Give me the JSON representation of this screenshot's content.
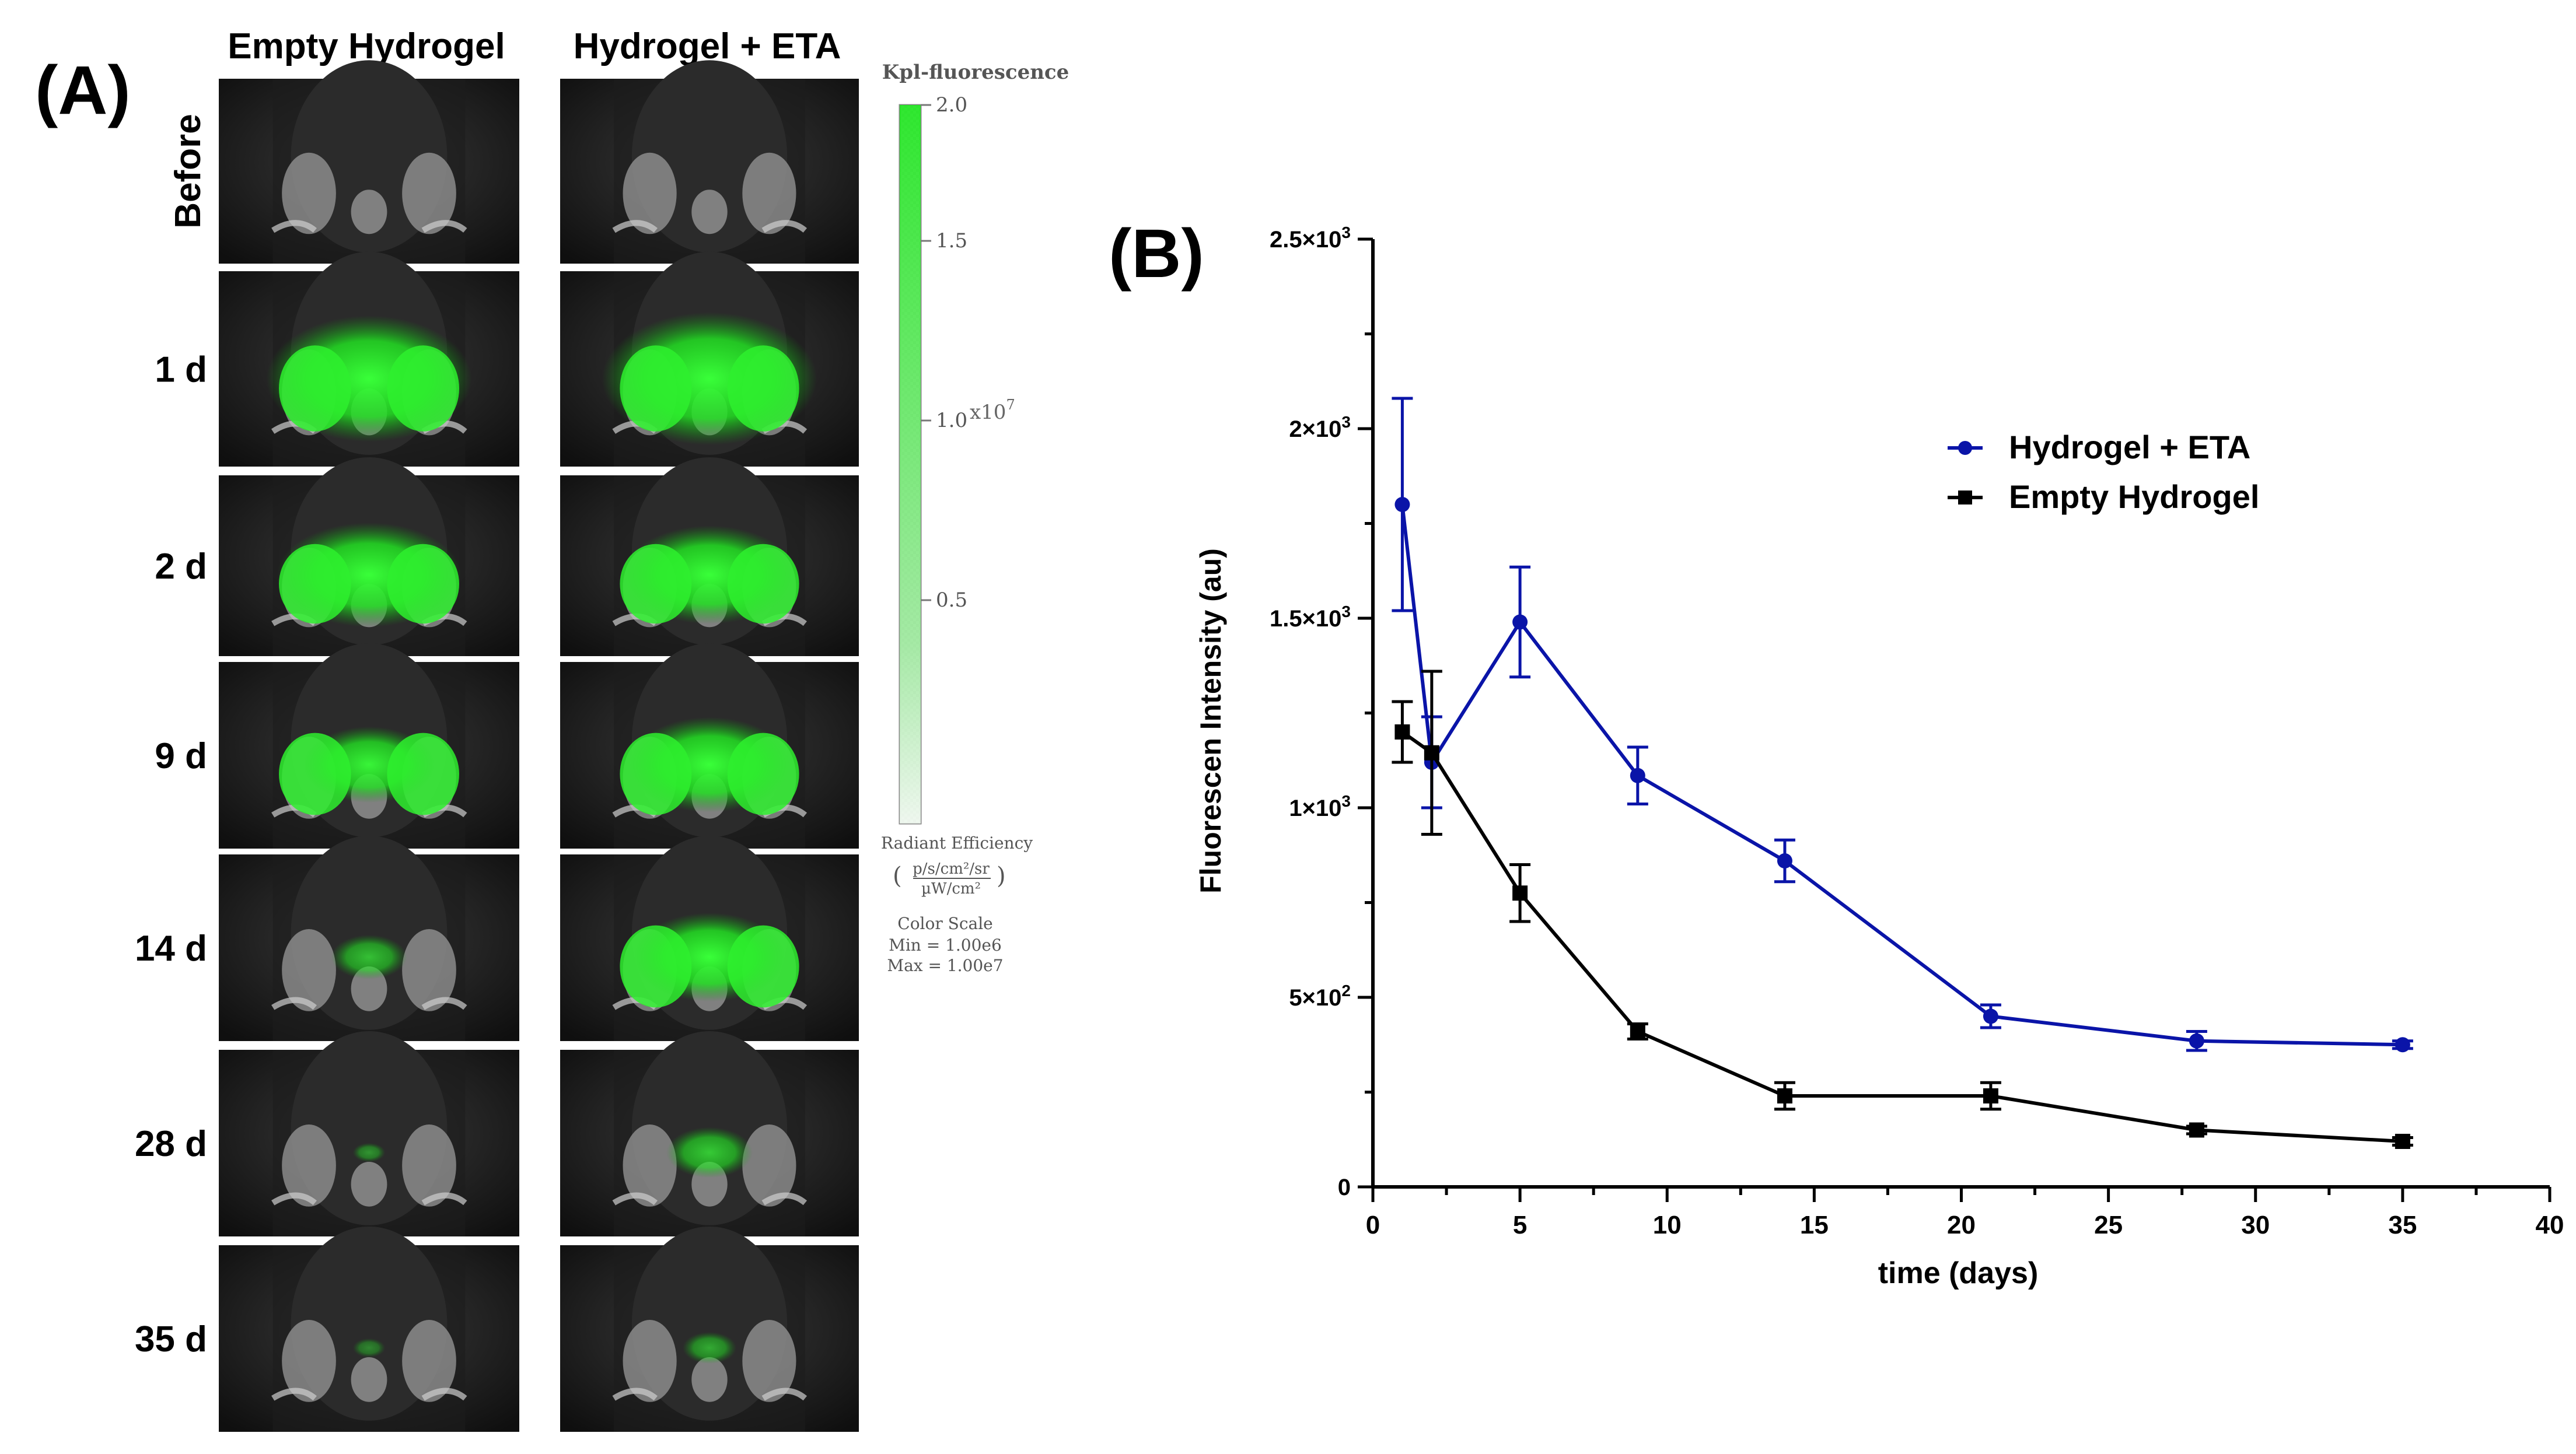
{
  "panel_a": {
    "label": "(A)",
    "column_headers": [
      "Empty Hydrogel",
      "Hydrogel + ETA"
    ],
    "row_labels": [
      "Before",
      "1 d",
      "2 d",
      "9 d",
      "14 d",
      "28 d",
      "35 d"
    ],
    "fluorescence_levels": {
      "empty": [
        0,
        0.95,
        0.85,
        0.6,
        0.35,
        0.15,
        0.08
      ],
      "eta": [
        0,
        1.0,
        0.8,
        0.75,
        0.7,
        0.4,
        0.25
      ]
    },
    "colorbar": {
      "title": "Kpl-fluorescence",
      "ticks": [
        "2.0",
        "1.5",
        "1.0",
        "0.5"
      ],
      "multiplier": "x10",
      "multiplier_exp": "7",
      "unit_title": "Radiant Efficiency",
      "unit_num": "p/s/cm²/sr",
      "unit_den": "µW/cm²",
      "scale_label": "Color Scale",
      "min_label": "Min = 1.00e6",
      "max_label": "Max = 1.00e7",
      "color": "#1ee61e"
    }
  },
  "chart_data": {
    "panel_label": "(B)",
    "type": "line",
    "xlabel": "time (days)",
    "ylabel": "Fluorescen Intensity (au)",
    "xlim": [
      0,
      40
    ],
    "ylim": [
      0,
      2500
    ],
    "x_ticks": [
      "0",
      "5",
      "10",
      "15",
      "20",
      "25",
      "30",
      "35",
      "40"
    ],
    "y_ticks": [
      {
        "value": 0,
        "base": "0",
        "exp": ""
      },
      {
        "value": 500,
        "base": "5×10",
        "exp": "2"
      },
      {
        "value": 1000,
        "base": "1×10",
        "exp": "3"
      },
      {
        "value": 1500,
        "base": "1.5×10",
        "exp": "3"
      },
      {
        "value": 2000,
        "base": "2×10",
        "exp": "3"
      },
      {
        "value": 2500,
        "base": "2.5×10",
        "exp": "3"
      }
    ],
    "series": [
      {
        "name": "Hydrogel + ETA",
        "color": "#0a14a8",
        "marker": "circle",
        "x": [
          1,
          2,
          5,
          9,
          14,
          21,
          28,
          35
        ],
        "y": [
          1800,
          1120,
          1490,
          1085,
          860,
          450,
          385,
          375
        ],
        "err": [
          280,
          120,
          145,
          75,
          55,
          30,
          25,
          10
        ]
      },
      {
        "name": "Empty Hydrogel",
        "color": "#000000",
        "marker": "square",
        "x": [
          1,
          2,
          5,
          9,
          14,
          21,
          28,
          35
        ],
        "y": [
          1200,
          1145,
          775,
          410,
          240,
          240,
          150,
          120
        ],
        "err": [
          80,
          215,
          75,
          20,
          35,
          35,
          10,
          10
        ]
      }
    ],
    "legend_position": "upper-right"
  }
}
